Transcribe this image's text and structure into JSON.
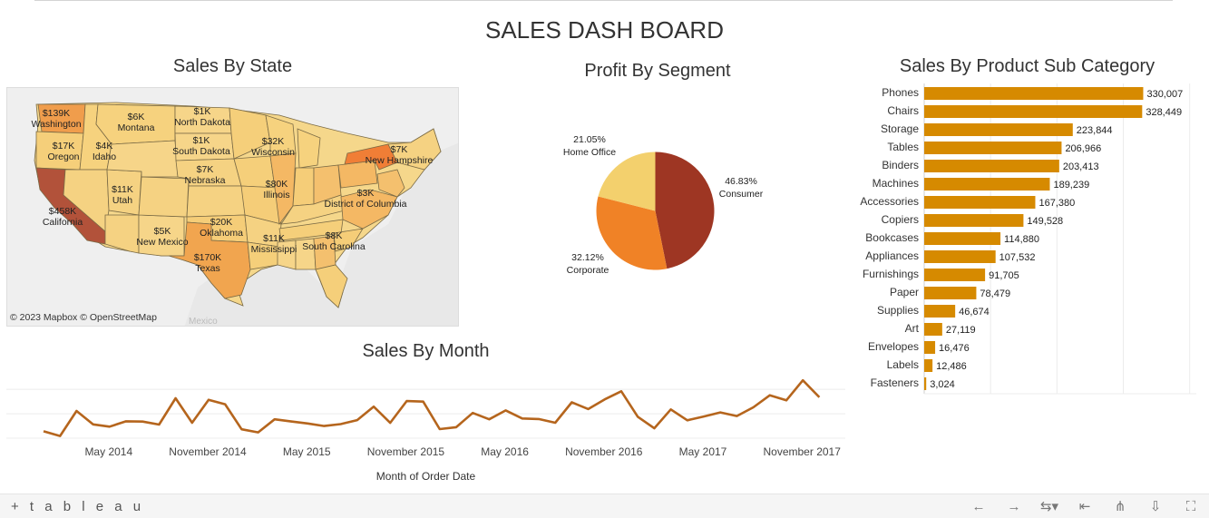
{
  "dashboard": {
    "title": "SALES DASH BOARD"
  },
  "map": {
    "title": "Sales By State",
    "credit": "© 2023 Mapbox  © OpenStreetMap",
    "basemap_text": "Mexico",
    "states": [
      {
        "name": "Washington",
        "value": "$139K"
      },
      {
        "name": "Oregon",
        "value": "$17K"
      },
      {
        "name": "Idaho",
        "value": "$4K"
      },
      {
        "name": "Montana",
        "value": "$6K"
      },
      {
        "name": "North Dakota",
        "value": "$1K"
      },
      {
        "name": "South Dakota",
        "value": "$1K"
      },
      {
        "name": "Nebraska",
        "value": "$7K"
      },
      {
        "name": "Wisconsin",
        "value": "$32K"
      },
      {
        "name": "New Hampshire",
        "value": "$7K"
      },
      {
        "name": "California",
        "value": "$458K"
      },
      {
        "name": "Utah",
        "value": "$11K"
      },
      {
        "name": "Illinois",
        "value": "$80K"
      },
      {
        "name": "District of Columbia",
        "value": "$3K"
      },
      {
        "name": "New Mexico",
        "value": "$5K"
      },
      {
        "name": "Oklahoma",
        "value": "$20K"
      },
      {
        "name": "Mississippi",
        "value": "$11K"
      },
      {
        "name": "South Carolina",
        "value": "$8K"
      },
      {
        "name": "Texas",
        "value": "$170K"
      }
    ]
  },
  "pie": {
    "title": "Profit By Segment",
    "slices": [
      {
        "name": "Consumer",
        "pct": "46.83%",
        "value": 46.83,
        "color": "#9e3623"
      },
      {
        "name": "Corporate",
        "pct": "32.12%",
        "value": 32.12,
        "color": "#f08226"
      },
      {
        "name": "Home Office",
        "pct": "21.05%",
        "value": 21.05,
        "color": "#f3d06d"
      }
    ]
  },
  "footer": {
    "logo": "+ t a b l e a u",
    "icons": [
      "undo-icon",
      "redo-icon",
      "revert-icon",
      "pause-icon",
      "share-icon",
      "download-icon",
      "fullscreen-icon"
    ]
  },
  "chart_data": [
    {
      "type": "bar",
      "title": "Sales By Product Sub Category",
      "categories": [
        "Phones",
        "Chairs",
        "Storage",
        "Tables",
        "Binders",
        "Machines",
        "Accessories",
        "Copiers",
        "Bookcases",
        "Appliances",
        "Furnishings",
        "Paper",
        "Supplies",
        "Art",
        "Envelopes",
        "Labels",
        "Fasteners"
      ],
      "values": [
        330007,
        328449,
        223844,
        206966,
        203413,
        189239,
        167380,
        149528,
        114880,
        107532,
        91705,
        78479,
        46674,
        27119,
        16476,
        12486,
        3024
      ],
      "value_labels": [
        "330,007",
        "328,449",
        "223,844",
        "206,966",
        "203,413",
        "189,239",
        "167,380",
        "149,528",
        "114,880",
        "107,532",
        "91,705",
        "78,479",
        "46,674",
        "27,119",
        "16,476",
        "12,486",
        "3,024"
      ],
      "orientation": "horizontal",
      "color": "#d68a00",
      "xlim": [
        0,
        410000
      ],
      "grid": true
    },
    {
      "type": "line",
      "title": "Sales By Month",
      "xlabel": "Month of Order Date",
      "color": "#b5651d",
      "x": [
        "2014-01",
        "2014-02",
        "2014-03",
        "2014-04",
        "2014-05",
        "2014-06",
        "2014-07",
        "2014-08",
        "2014-09",
        "2014-10",
        "2014-11",
        "2014-12",
        "2015-01",
        "2015-02",
        "2015-03",
        "2015-04",
        "2015-05",
        "2015-06",
        "2015-07",
        "2015-08",
        "2015-09",
        "2015-10",
        "2015-11",
        "2015-12",
        "2016-01",
        "2016-02",
        "2016-03",
        "2016-04",
        "2016-05",
        "2016-06",
        "2016-07",
        "2016-08",
        "2016-09",
        "2016-10",
        "2016-11",
        "2016-12",
        "2017-01",
        "2017-02",
        "2017-03",
        "2017-04",
        "2017-05",
        "2017-06",
        "2017-07",
        "2017-08",
        "2017-09",
        "2017-10",
        "2017-11",
        "2017-12"
      ],
      "values": [
        14200,
        4500,
        55700,
        28300,
        23600,
        34600,
        33900,
        27900,
        81800,
        31500,
        78600,
        69500,
        18200,
        11900,
        38700,
        34200,
        30100,
        24800,
        28800,
        36900,
        64600,
        31400,
        75900,
        74900,
        18500,
        22400,
        51700,
        38700,
        56900,
        40300,
        39100,
        31500,
        73400,
        59700,
        79400,
        96100,
        43900,
        20300,
        58900,
        36500,
        44300,
        52800,
        45300,
        63100,
        87900,
        77400,
        118400,
        83800
      ],
      "tick_labels": [
        "May 2014",
        "November 2014",
        "May 2015",
        "November 2015",
        "May 2016",
        "November 2016",
        "May 2017",
        "November 2017"
      ],
      "grid": true
    }
  ]
}
